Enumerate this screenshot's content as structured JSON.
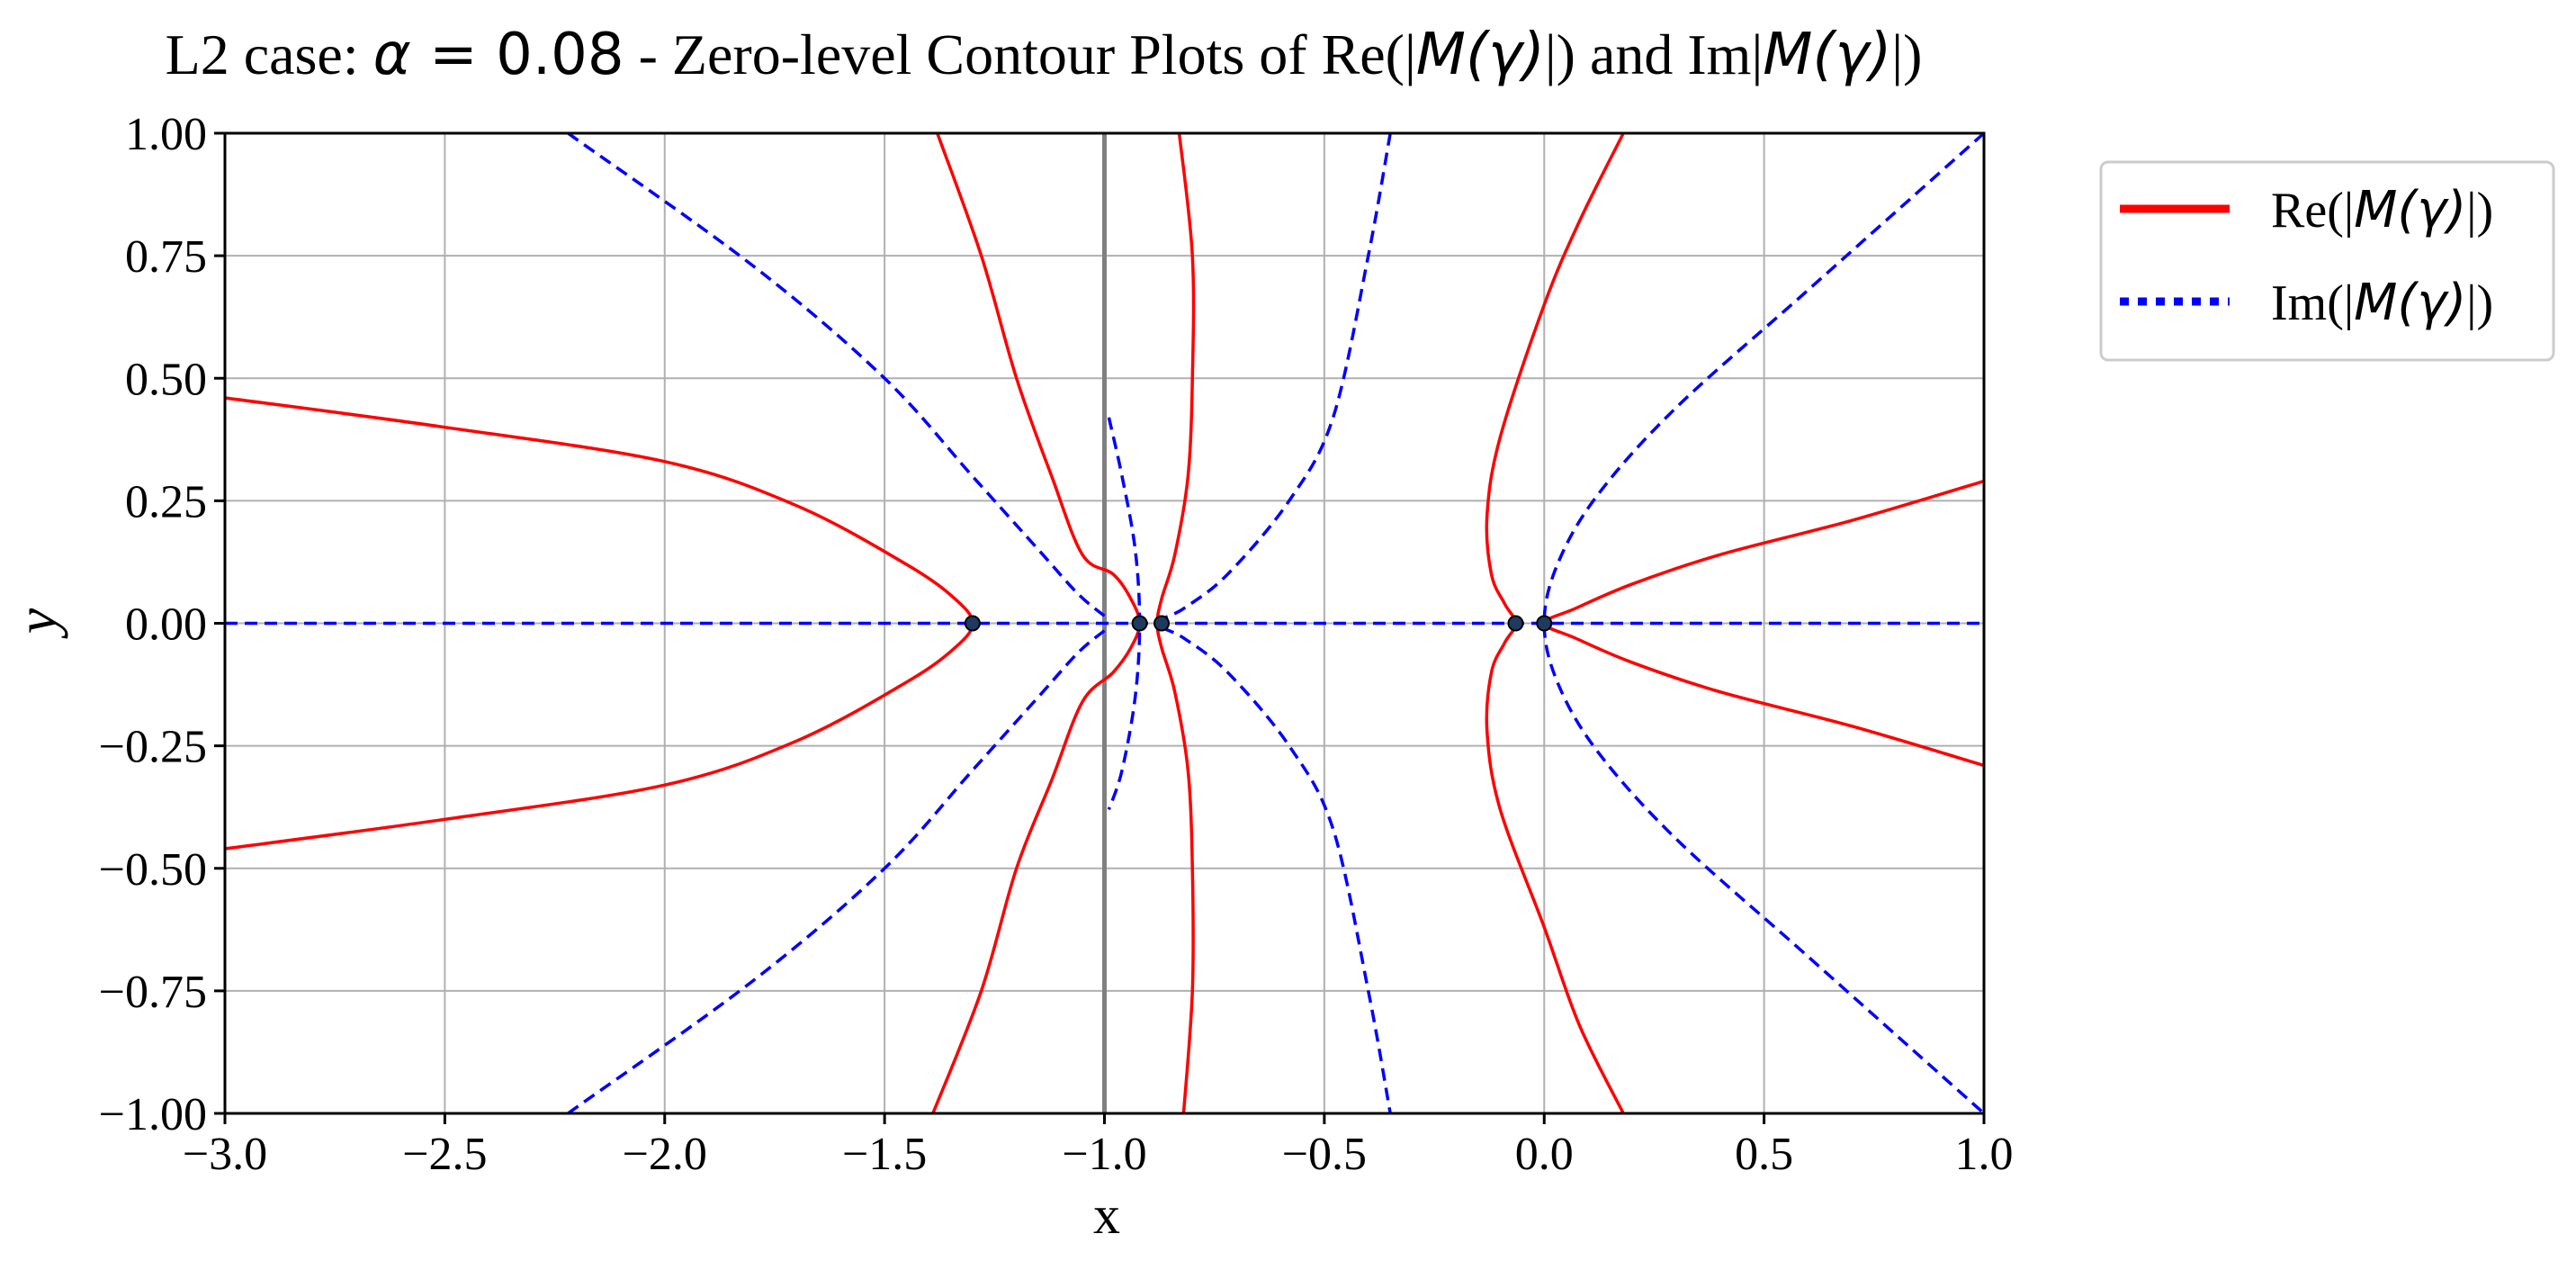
{
  "chart_data": {
    "type": "line",
    "title": {
      "prefix": "L2 case: ",
      "alpha_symbol": "α",
      "equals": " = ",
      "alpha_value": "0.08",
      "middle": " - Zero-level Contour Plots of Re(|",
      "m_gamma": "M(γ)",
      "mid2": "|) and Im|",
      "m_gamma2": "M(γ)",
      "suffix": "|)"
    },
    "xlabel": "x",
    "ylabel": "y",
    "xlim": [
      -3.0,
      1.0
    ],
    "ylim": [
      -1.0,
      1.0
    ],
    "grid": true,
    "xticks": [
      -3.0,
      -2.5,
      -2.0,
      -1.5,
      -1.0,
      -0.5,
      0.0,
      0.5,
      1.0
    ],
    "xtick_labels": [
      "−3.0",
      "−2.5",
      "−2.0",
      "−1.5",
      "−1.0",
      "−0.5",
      "0.0",
      "0.5",
      "1.0"
    ],
    "yticks": [
      1.0,
      0.75,
      0.5,
      0.25,
      0.0,
      -0.25,
      -0.5,
      -0.75,
      -1.0
    ],
    "ytick_labels": [
      "1.00",
      "0.75",
      "0.50",
      "0.25",
      "0.00",
      "−0.25",
      "−0.50",
      "−0.75",
      "−1.00"
    ],
    "legend": {
      "position": "outside-top-right",
      "entries": [
        {
          "label_prefix": "Re(|",
          "label_math": "M(γ)",
          "label_suffix": "|)",
          "style": "solid",
          "color": "#ff0000"
        },
        {
          "label_prefix": "Im(|",
          "label_math": "M(γ)",
          "label_suffix": "|)",
          "style": "dotted",
          "color": "#0000ff"
        }
      ]
    },
    "vertical_line": {
      "x": -1.0,
      "color": "#808080"
    },
    "colors": {
      "re": "#ff0000",
      "im": "#0000ff",
      "grid": "#b0b0b0",
      "point": "#1f3a5f"
    },
    "series": [
      {
        "name": "Re",
        "id": "re-1",
        "points": [
          [
            -3.0,
            0.46
          ],
          [
            -2.5,
            0.4
          ],
          [
            -2.0,
            0.33
          ],
          [
            -1.7,
            0.24
          ],
          [
            -1.45,
            0.12
          ],
          [
            -1.34,
            0.05
          ],
          [
            -1.3,
            0.0
          ],
          [
            -1.34,
            -0.05
          ],
          [
            -1.45,
            -0.12
          ],
          [
            -1.7,
            -0.24
          ],
          [
            -2.0,
            -0.33
          ],
          [
            -2.5,
            -0.4
          ],
          [
            -3.0,
            -0.46
          ]
        ]
      },
      {
        "name": "Re",
        "id": "re-2",
        "points": [
          [
            -1.38,
            1.0
          ],
          [
            -1.28,
            0.75
          ],
          [
            -1.2,
            0.5
          ],
          [
            -1.12,
            0.3
          ],
          [
            -1.05,
            0.14
          ],
          [
            -0.98,
            0.1
          ],
          [
            -0.94,
            0.05
          ],
          [
            -0.92,
            0.0
          ],
          [
            -0.94,
            -0.05
          ],
          [
            -0.98,
            -0.1
          ],
          [
            -1.05,
            -0.16
          ],
          [
            -1.12,
            -0.32
          ],
          [
            -1.2,
            -0.5
          ],
          [
            -1.28,
            -0.75
          ],
          [
            -1.39,
            -1.0
          ]
        ]
      },
      {
        "name": "Re",
        "id": "re-3",
        "points": [
          [
            -0.83,
            1.0
          ],
          [
            -0.8,
            0.75
          ],
          [
            -0.8,
            0.5
          ],
          [
            -0.81,
            0.3
          ],
          [
            -0.84,
            0.14
          ],
          [
            -0.87,
            0.05
          ],
          [
            -0.88,
            0.0
          ],
          [
            -0.87,
            -0.05
          ],
          [
            -0.84,
            -0.14
          ],
          [
            -0.81,
            -0.3
          ],
          [
            -0.8,
            -0.5
          ],
          [
            -0.8,
            -0.75
          ],
          [
            -0.82,
            -1.0
          ]
        ]
      },
      {
        "name": "Re",
        "id": "re-4",
        "points": [
          [
            0.18,
            1.0
          ],
          [
            0.08,
            0.82
          ],
          [
            0.0,
            0.65
          ],
          [
            -0.1,
            0.38
          ],
          [
            -0.13,
            0.22
          ],
          [
            -0.12,
            0.1
          ],
          [
            -0.09,
            0.04
          ],
          [
            -0.065,
            0.0
          ],
          [
            -0.09,
            -0.04
          ],
          [
            -0.12,
            -0.1
          ],
          [
            -0.13,
            -0.22
          ],
          [
            -0.1,
            -0.38
          ],
          [
            0.0,
            -0.62
          ],
          [
            0.08,
            -0.82
          ],
          [
            0.18,
            -1.0
          ]
        ]
      },
      {
        "name": "Re",
        "id": "re-5",
        "points": [
          [
            1.0,
            0.29
          ],
          [
            0.7,
            0.21
          ],
          [
            0.4,
            0.14
          ],
          [
            0.2,
            0.08
          ],
          [
            0.07,
            0.03
          ],
          [
            0.0,
            0.0
          ],
          [
            0.07,
            -0.03
          ],
          [
            0.2,
            -0.08
          ],
          [
            0.4,
            -0.14
          ],
          [
            0.7,
            -0.21
          ],
          [
            1.0,
            -0.29
          ]
        ]
      },
      {
        "name": "Im",
        "id": "im-axis",
        "points": [
          [
            -3.0,
            0.0
          ],
          [
            1.0,
            0.0
          ]
        ]
      },
      {
        "name": "Im",
        "id": "im-1",
        "points": [
          [
            -2.22,
            1.0
          ],
          [
            -1.8,
            0.73
          ],
          [
            -1.5,
            0.5
          ],
          [
            -1.3,
            0.3
          ],
          [
            -1.15,
            0.15
          ],
          [
            -1.06,
            0.06
          ],
          [
            -1.0,
            0.015
          ]
        ]
      },
      {
        "name": "Im",
        "id": "im-2",
        "points": [
          [
            -2.22,
            -1.0
          ],
          [
            -1.8,
            -0.73
          ],
          [
            -1.5,
            -0.5
          ],
          [
            -1.3,
            -0.3
          ],
          [
            -1.15,
            -0.15
          ],
          [
            -1.06,
            -0.06
          ],
          [
            -1.0,
            -0.015
          ]
        ]
      },
      {
        "name": "Im",
        "id": "im-3",
        "points": [
          [
            -0.99,
            0.42
          ],
          [
            -0.96,
            0.3
          ],
          [
            -0.93,
            0.15
          ],
          [
            -0.92,
            0.0
          ],
          [
            -0.93,
            -0.15
          ],
          [
            -0.96,
            -0.3
          ],
          [
            -0.99,
            -0.38
          ]
        ]
      },
      {
        "name": "Im",
        "id": "im-4",
        "points": [
          [
            -0.35,
            1.0
          ],
          [
            -0.4,
            0.75
          ],
          [
            -0.48,
            0.42
          ],
          [
            -0.58,
            0.25
          ],
          [
            -0.72,
            0.1
          ],
          [
            -0.82,
            0.03
          ],
          [
            -0.88,
            0.0
          ],
          [
            -0.82,
            -0.03
          ],
          [
            -0.72,
            -0.1
          ],
          [
            -0.58,
            -0.25
          ],
          [
            -0.48,
            -0.42
          ],
          [
            -0.4,
            -0.75
          ],
          [
            -0.35,
            -1.0
          ]
        ]
      },
      {
        "name": "Im",
        "id": "im-5",
        "points": [
          [
            1.0,
            1.0
          ],
          [
            0.6,
            0.68
          ],
          [
            0.3,
            0.44
          ],
          [
            0.12,
            0.26
          ],
          [
            0.03,
            0.12
          ],
          [
            0.0,
            0.0
          ],
          [
            0.03,
            -0.12
          ],
          [
            0.12,
            -0.26
          ],
          [
            0.3,
            -0.44
          ],
          [
            0.6,
            -0.68
          ],
          [
            1.0,
            -1.0
          ]
        ]
      }
    ],
    "points": [
      [
        -1.3,
        0.0
      ],
      [
        -0.92,
        0.0
      ],
      [
        -0.87,
        0.0
      ],
      [
        -0.065,
        0.0
      ],
      [
        0.0,
        0.0
      ]
    ]
  }
}
